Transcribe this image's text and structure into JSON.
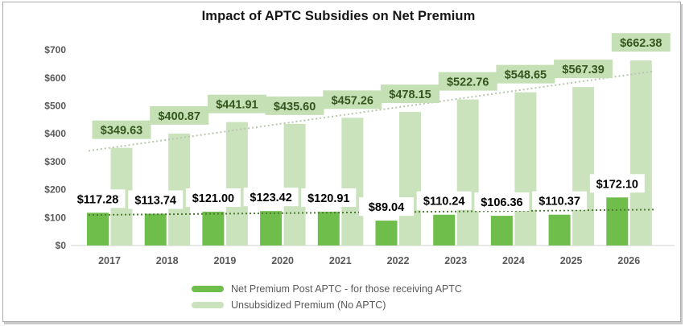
{
  "chart_data": {
    "type": "bar",
    "title": "Impact of APTC Subsidies on Net Premium",
    "categories": [
      "2017",
      "2018",
      "2019",
      "2020",
      "2021",
      "2022",
      "2023",
      "2024",
      "2025",
      "2026"
    ],
    "series": [
      {
        "name": "Net Premium Post APTC - for those receiving APTC",
        "values": [
          117.28,
          113.74,
          121.0,
          123.42,
          120.91,
          89.04,
          110.24,
          106.36,
          110.37,
          172.1
        ],
        "bar_color": "#6fbe4c",
        "label_bg": "#ffffff",
        "label_text_color": "#000000",
        "trendline": {
          "style": "dotted",
          "color": "#4e7a33"
        }
      },
      {
        "name": "Unsubsidized Premium (No APTC)",
        "values": [
          349.63,
          400.87,
          441.91,
          435.6,
          457.26,
          478.15,
          522.76,
          548.65,
          567.39,
          662.38
        ],
        "bar_color": "#cbe3bd",
        "label_bg": "#c6e0b5",
        "label_text_color": "#33561f",
        "trendline": {
          "style": "dotted",
          "color": "#b9c6af"
        }
      }
    ],
    "value_prefix": "$",
    "value_decimals": 2,
    "y_axis": {
      "min": 0,
      "max": 700,
      "step": 100,
      "tick_labels": [
        "$0",
        "$100",
        "$200",
        "$300",
        "$400",
        "$500",
        "$600",
        "$700"
      ],
      "tick_color": "#595959"
    },
    "x_axis": {
      "tick_color": "#595959",
      "line_color": "#d9d9d9"
    },
    "grid": false,
    "legend_position": "bottom-left"
  }
}
